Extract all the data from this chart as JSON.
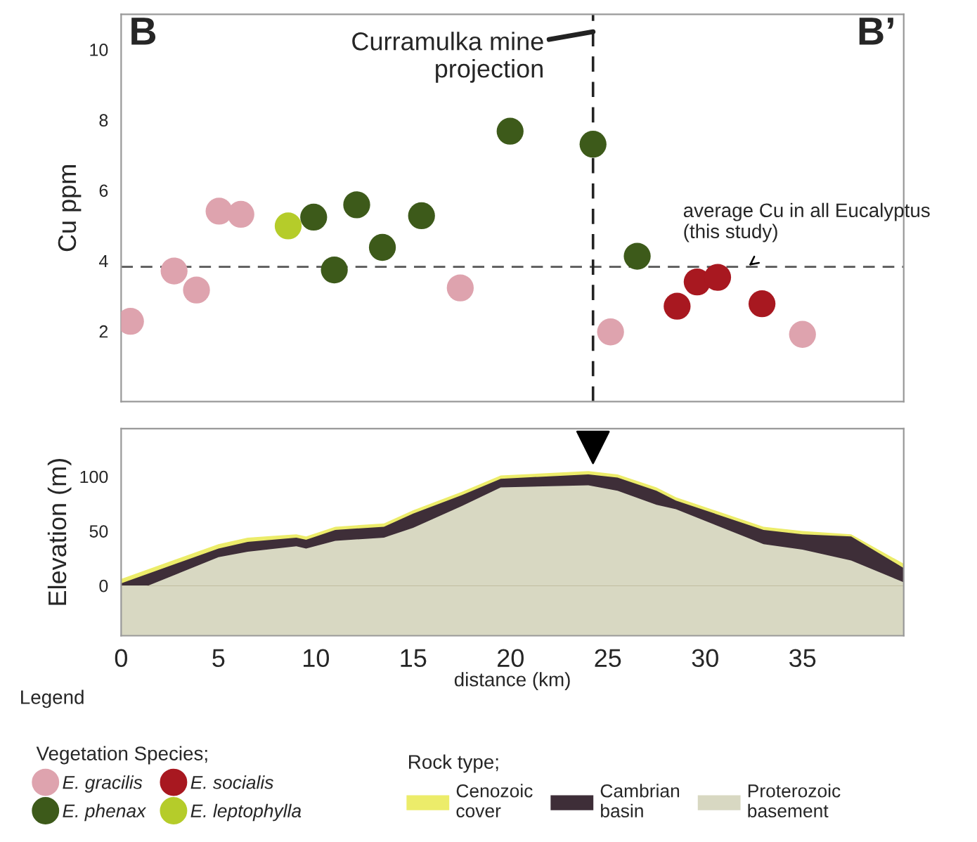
{
  "chart_data": [
    {
      "type": "scatter",
      "ylabel": "Cu ppm",
      "xlim": [
        0,
        40.2
      ],
      "xticks": [
        0,
        5,
        10,
        15,
        20,
        25,
        30,
        35
      ],
      "ylim": [
        0,
        11
      ],
      "yticks": [
        2,
        4,
        6,
        8,
        10
      ],
      "tick_labels": "y",
      "grid": false,
      "marker": "circle",
      "legend": "bottom",
      "legend_title": "Vegetation Species;",
      "annotations": [
        "B",
        "B’"
      ],
      "ref_lines": [
        {
          "axis": "y",
          "value": 3.83,
          "label": "average Cu in all Eucalyptus\n(this study)",
          "line_style": "dashed",
          "color": "#555555"
        },
        {
          "axis": "x",
          "value": 24.24,
          "label": "Curramulka mine\nprojection",
          "line_style": "dashed",
          "color": "#222222"
        }
      ],
      "series": [
        {
          "name": "E. gracilis",
          "color": "#dea3ae",
          "x": [
            0.48,
            2.72,
            3.87,
            5.03,
            6.15,
            17.42,
            25.14,
            35.0
          ],
          "values": [
            2.28,
            3.71,
            3.17,
            5.41,
            5.32,
            3.23,
            1.98,
            1.91
          ]
        },
        {
          "name": "E. phenax",
          "color": "#3d5a1a",
          "x": [
            9.89,
            10.95,
            12.1,
            13.42,
            15.43,
            19.98,
            24.24,
            26.51
          ],
          "values": [
            5.24,
            3.74,
            5.59,
            4.38,
            5.28,
            7.68,
            7.31,
            4.13
          ]
        },
        {
          "name": "E. socialis",
          "color": "#a81820",
          "x": [
            28.56,
            29.59,
            30.64,
            32.92
          ],
          "values": [
            2.71,
            3.4,
            3.53,
            2.78
          ]
        },
        {
          "name": "E. leptophylla",
          "color": "#b5cc2a",
          "x": [
            8.58
          ],
          "values": [
            4.99
          ]
        }
      ]
    },
    {
      "type": "area",
      "xlabel": "distance (km)",
      "ylabel": "Elevation (m)",
      "xlim": [
        0,
        40.2
      ],
      "xticks": [
        0,
        5,
        10,
        15,
        20,
        25,
        30,
        35
      ],
      "ylim": [
        -46,
        144
      ],
      "yticks": [
        0,
        50,
        100
      ],
      "grid": false,
      "legend": "bottom",
      "legend_title": "Rock type;",
      "annotations": [
        "Legend"
      ],
      "bands": [
        {
          "axis": "y",
          "from": -46,
          "to": 0,
          "color": "#d8d8c2"
        }
      ],
      "x": [
        0,
        5,
        6.5,
        9,
        9.5,
        11,
        13.5,
        15,
        17.5,
        19.5,
        24,
        25.5,
        27.5,
        28.5,
        33,
        35,
        37.5,
        40.2
      ],
      "series": [
        {
          "name": "Cenozoic cover",
          "color": "#ecec6a",
          "values": [
            6,
            38,
            44,
            47,
            45,
            54,
            57,
            69,
            86,
            101,
            105,
            102,
            90,
            81,
            54,
            50,
            47,
            20
          ]
        },
        {
          "name": "Cambrian basin",
          "color": "#3e2e38",
          "values": [
            2,
            34,
            40,
            44,
            42,
            51,
            54,
            66,
            83,
            98,
            102,
            99,
            87,
            78,
            51,
            47,
            45,
            16
          ]
        },
        {
          "name": "Proterozoic basement",
          "color": "#d8d8c2",
          "values": [
            -10,
            26,
            31,
            36,
            34,
            41,
            44,
            53,
            73,
            90,
            92,
            87,
            74,
            70,
            38,
            33,
            23,
            3
          ]
        }
      ]
    }
  ]
}
